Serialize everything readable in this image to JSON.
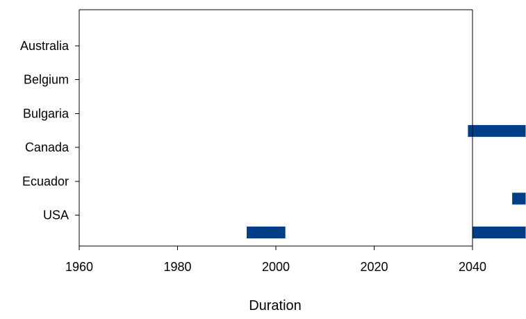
{
  "chart_data": {
    "type": "bar",
    "subtype": "horizontal-range",
    "title": "",
    "xlabel": "Duration",
    "ylabel": "",
    "categories": [
      "Australia",
      "Belgium",
      "Bulgaria",
      "Canada",
      "Ecuador",
      "USA"
    ],
    "x_ticks": [
      1960,
      1980,
      2000,
      2020,
      2040
    ],
    "xlim": [
      1960,
      2040
    ],
    "grid": false,
    "legend": "none",
    "bar_color": "#003f87",
    "series": [
      {
        "values": [
          {
            "category": "Bulgaria",
            "start": 2039,
            "end": 2051
          },
          {
            "category": "Ecuador",
            "start": 2048,
            "end": 2051
          },
          {
            "category": "USA",
            "start": 1994,
            "end": 2002
          },
          {
            "category": "USA",
            "start": 2040,
            "end": 2051
          }
        ]
      }
    ]
  }
}
